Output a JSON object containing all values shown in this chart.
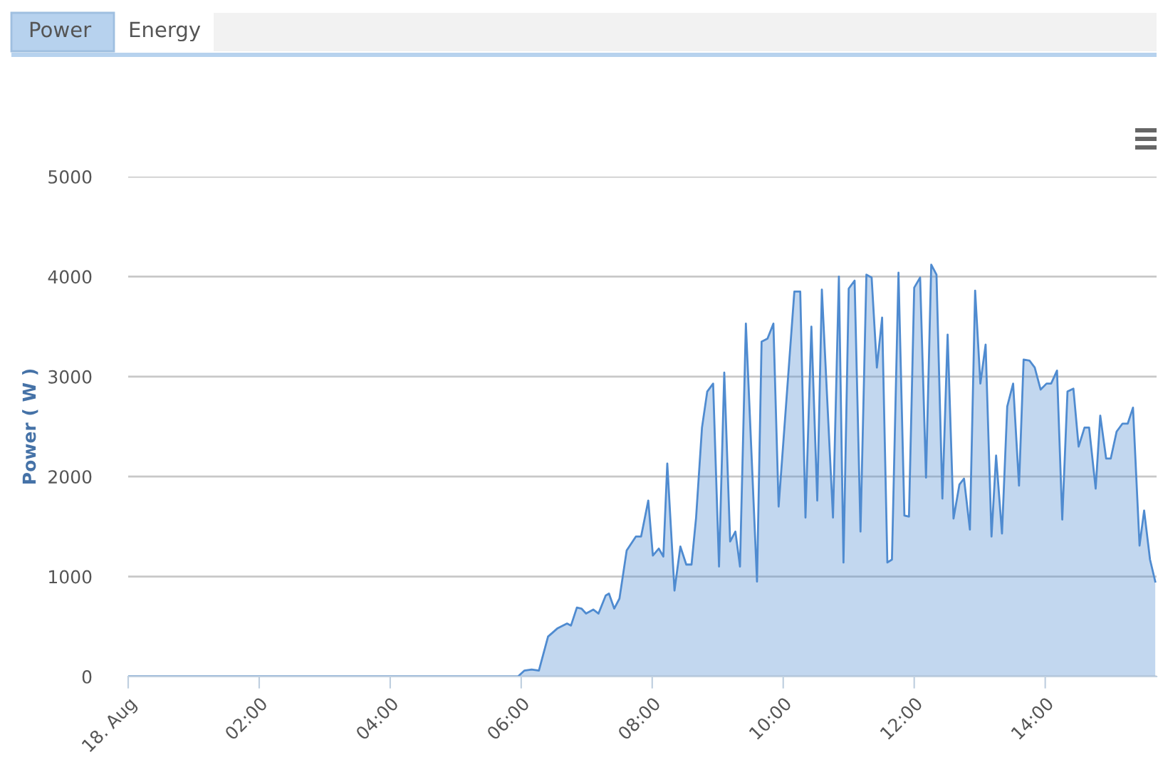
{
  "chart_data": {
    "type": "area",
    "ylabel": "Power ( W )",
    "annotations": [
      "Power",
      "Energy"
    ],
    "x": [
      0,
      5.95,
      6.05,
      6.16,
      6.27,
      6.41,
      6.55,
      6.7,
      6.76,
      6.85,
      6.92,
      6.99,
      7.1,
      7.18,
      7.29,
      7.34,
      7.42,
      7.5,
      7.61,
      7.75,
      7.83,
      7.94,
      8.01,
      8.1,
      8.17,
      8.23,
      8.34,
      8.43,
      8.52,
      8.6,
      8.67,
      8.76,
      8.84,
      8.93,
      9.02,
      9.1,
      9.19,
      9.27,
      9.34,
      9.43,
      9.6,
      9.67,
      9.76,
      9.85,
      9.93,
      10.17,
      10.26,
      10.34,
      10.43,
      10.52,
      10.59,
      10.76,
      10.85,
      10.92,
      11.0,
      11.09,
      11.18,
      11.27,
      11.35,
      11.43,
      11.51,
      11.59,
      11.66,
      11.76,
      11.85,
      11.92,
      12.0,
      12.09,
      12.18,
      12.26,
      12.34,
      12.43,
      12.51,
      12.6,
      12.69,
      12.76,
      12.85,
      12.93,
      13.01,
      13.09,
      13.18,
      13.25,
      13.34,
      13.42,
      13.51,
      13.6,
      13.67,
      13.76,
      13.84,
      13.93,
      14.02,
      14.09,
      14.18,
      14.26,
      14.34,
      14.43,
      14.51,
      14.6,
      14.67,
      14.77,
      14.84,
      14.93,
      15.0,
      15.09,
      15.18,
      15.26,
      15.34,
      15.44,
      15.51,
      15.6,
      15.68
    ],
    "series": [
      {
        "color": "#4f8bd0",
        "values": [
          0,
          0,
          60,
          70,
          60,
          400,
          480,
          530,
          510,
          690,
          680,
          630,
          670,
          630,
          810,
          830,
          680,
          780,
          1260,
          1400,
          1400,
          1760,
          1210,
          1280,
          1200,
          2130,
          860,
          1300,
          1120,
          1120,
          1590,
          2490,
          2850,
          2930,
          1100,
          3040,
          1350,
          1450,
          1100,
          3530,
          950,
          3350,
          3380,
          3530,
          1700,
          3850,
          3850,
          1590,
          3500,
          1760,
          3870,
          1590,
          4000,
          1140,
          3880,
          3960,
          1450,
          4020,
          3990,
          3090,
          3590,
          1140,
          1170,
          4040,
          1610,
          1600,
          3890,
          3990,
          1990,
          4120,
          4020,
          1780,
          3420,
          1580,
          1920,
          1980,
          1470,
          3860,
          2930,
          3320,
          1400,
          2210,
          1430,
          2700,
          2930,
          1910,
          3170,
          3160,
          3090,
          2870,
          2930,
          2930,
          3060,
          1570,
          2850,
          2880,
          2300,
          2490,
          2490,
          1880,
          2610,
          2180,
          2180,
          2450,
          2530,
          2530,
          2690,
          1310,
          1660,
          1170,
          950
        ]
      }
    ],
    "xlim": [
      0,
      15.7
    ],
    "xticks": [
      {
        "value": 0,
        "label": "18. Aug"
      },
      {
        "value": 2,
        "label": "02:00"
      },
      {
        "value": 4,
        "label": "04:00"
      },
      {
        "value": 6,
        "label": "06:00"
      },
      {
        "value": 8,
        "label": "08:00"
      },
      {
        "value": 10,
        "label": "10:00"
      },
      {
        "value": 12,
        "label": "12:00"
      },
      {
        "value": 14,
        "label": "14:00"
      }
    ],
    "ylim": [
      0,
      5000
    ],
    "yticks": [
      0,
      1000,
      2000,
      3000,
      4000,
      5000
    ],
    "grid": "y",
    "legend": false
  }
}
